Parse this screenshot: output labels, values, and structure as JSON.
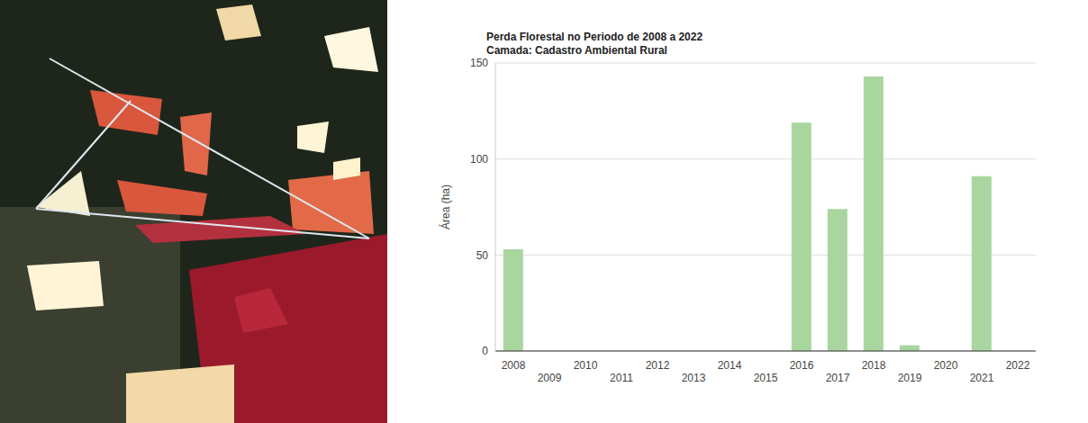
{
  "chart_data": {
    "type": "bar",
    "title": "Perda Florestal no Periodo de 2008 a 2022",
    "subtitle": "Camada: Cadastro Ambiental Rural",
    "y_label": "Área (ha)",
    "categories": [
      "2008",
      "2009",
      "2010",
      "2011",
      "2012",
      "2013",
      "2014",
      "2015",
      "2016",
      "2017",
      "2018",
      "2019",
      "2020",
      "2021",
      "2022"
    ],
    "values": [
      53,
      0,
      0,
      0,
      0,
      0,
      0,
      0,
      119,
      74,
      143,
      3,
      0,
      91,
      0
    ],
    "color": "#a9d59f",
    "ylim": [
      0,
      150
    ],
    "yticks": [
      0,
      50,
      100,
      150
    ],
    "grid": true
  }
}
